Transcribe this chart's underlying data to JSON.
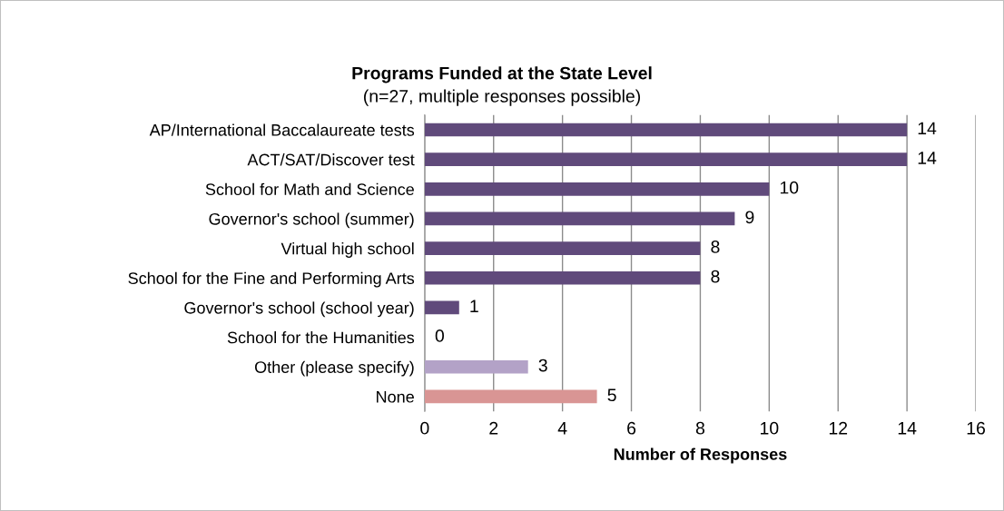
{
  "chart_data": {
    "type": "bar",
    "orientation": "horizontal",
    "title": "Programs Funded at the State Level",
    "subtitle": "(n=27, multiple responses possible)",
    "xlabel": "Number of Responses",
    "categories": [
      "AP/International Baccalaureate tests",
      "ACT/SAT/Discover test",
      "School for Math and Science",
      "Governor's school (summer)",
      "Virtual high school",
      "School for the Fine and Performing Arts",
      "Governor's school (school year)",
      "School for the Humanities",
      "Other (please specify)",
      "None"
    ],
    "values": [
      14,
      14,
      10,
      9,
      8,
      8,
      1,
      0,
      3,
      5
    ],
    "colors": [
      "#604a7b",
      "#604a7b",
      "#604a7b",
      "#604a7b",
      "#604a7b",
      "#604a7b",
      "#604a7b",
      "#604a7b",
      "#b3a2c7",
      "#d99594"
    ],
    "xlim": [
      0,
      16
    ],
    "xticks": [
      0,
      2,
      4,
      6,
      8,
      10,
      12,
      14,
      16
    ],
    "grid": "x",
    "data_labels": true
  }
}
